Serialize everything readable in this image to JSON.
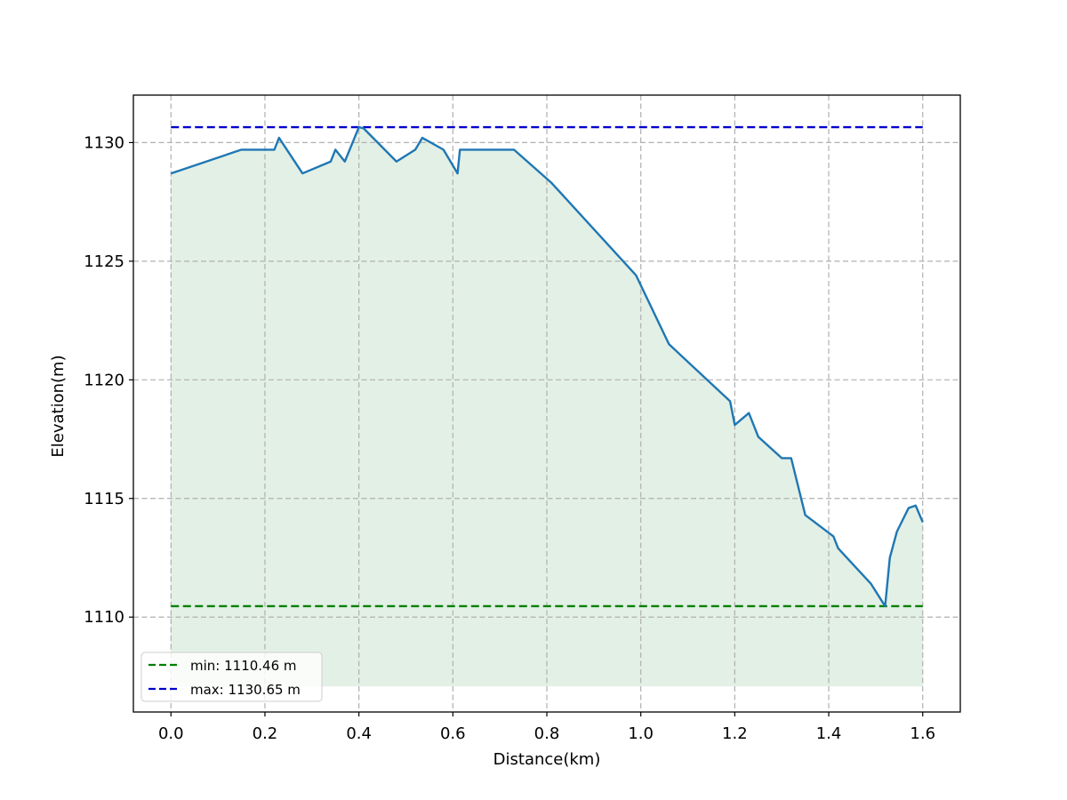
{
  "chart_data": {
    "type": "area",
    "title": "",
    "xlabel": "Distance(km)",
    "ylabel": "Elevation(m)",
    "xlim": [
      -0.08,
      1.68
    ],
    "ylim": [
      1106,
      1132
    ],
    "fill_baseline": 1107.1,
    "grid": true,
    "legend_position": "lower-left",
    "x_ticks": [
      0.0,
      0.2,
      0.4,
      0.6,
      0.8,
      1.0,
      1.2,
      1.4,
      1.6
    ],
    "x_tick_labels": [
      "0.0",
      "0.2",
      "0.4",
      "0.6",
      "0.8",
      "1.0",
      "1.2",
      "1.4",
      "1.6"
    ],
    "y_ticks": [
      1110,
      1115,
      1120,
      1125,
      1130
    ],
    "y_tick_labels": [
      "1110",
      "1115",
      "1120",
      "1125",
      "1130"
    ],
    "series": [
      {
        "name": "",
        "color": "#1f77b4",
        "fill_color": "#e3f0e5",
        "x": [
          0.0,
          0.15,
          0.22,
          0.23,
          0.28,
          0.34,
          0.35,
          0.37,
          0.4,
          0.41,
          0.48,
          0.52,
          0.535,
          0.58,
          0.61,
          0.615,
          0.73,
          0.81,
          0.99,
          1.06,
          1.19,
          1.2,
          1.23,
          1.25,
          1.3,
          1.32,
          1.35,
          1.41,
          1.42,
          1.49,
          1.52,
          1.53,
          1.545,
          1.56,
          1.57,
          1.585,
          1.6
        ],
        "y": [
          1128.7,
          1129.7,
          1129.7,
          1130.2,
          1128.7,
          1129.2,
          1129.7,
          1129.2,
          1130.65,
          1130.6,
          1129.2,
          1129.7,
          1130.2,
          1129.7,
          1128.7,
          1129.7,
          1129.7,
          1128.3,
          1124.4,
          1121.5,
          1119.1,
          1118.1,
          1118.6,
          1117.6,
          1116.7,
          1116.7,
          1114.3,
          1113.4,
          1112.9,
          1111.4,
          1110.46,
          1112.5,
          1113.6,
          1114.2,
          1114.6,
          1114.7,
          1114.0
        ]
      }
    ],
    "reference_lines": [
      {
        "name": "min: 1110.46 m",
        "value": 1110.46,
        "color": "#008000",
        "x_range": [
          0.0,
          1.6
        ]
      },
      {
        "name": "max: 1130.65 m",
        "value": 1130.65,
        "color": "#0000cd",
        "x_range": [
          0.0,
          1.6
        ]
      }
    ]
  }
}
